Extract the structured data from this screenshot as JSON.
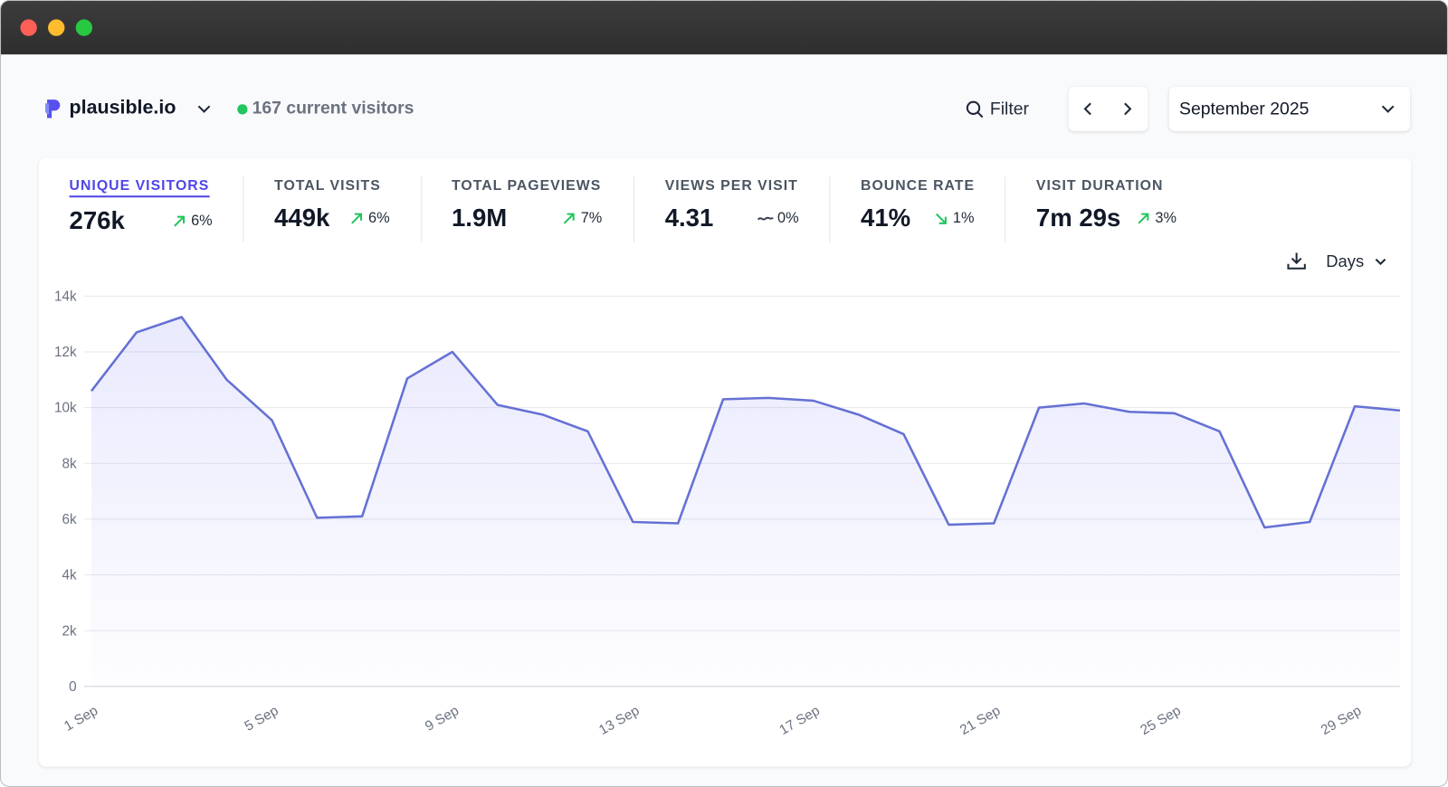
{
  "header": {
    "site": "plausible.io",
    "current_visitors": "167 current visitors",
    "filter": "Filter",
    "period": "September 2025"
  },
  "metrics": [
    {
      "label": "UNIQUE VISITORS",
      "value": "276k",
      "change": "6%",
      "trend": "up",
      "active": true
    },
    {
      "label": "TOTAL VISITS",
      "value": "449k",
      "change": "6%",
      "trend": "up"
    },
    {
      "label": "TOTAL PAGEVIEWS",
      "value": "1.9M",
      "change": "7%",
      "trend": "up"
    },
    {
      "label": "VIEWS PER VISIT",
      "value": "4.31",
      "change": "0%",
      "trend": "flat"
    },
    {
      "label": "BOUNCE RATE",
      "value": "41%",
      "change": "1%",
      "trend": "down"
    },
    {
      "label": "VISIT DURATION",
      "value": "7m 29s",
      "change": "3%",
      "trend": "up"
    }
  ],
  "interval": "Days",
  "chart_data": {
    "type": "area",
    "categories": [
      "1 Sep",
      null,
      null,
      null,
      "5 Sep",
      null,
      null,
      null,
      "9 Sep",
      null,
      null,
      null,
      "13 Sep",
      null,
      null,
      null,
      "17 Sep",
      null,
      null,
      null,
      "21 Sep",
      null,
      null,
      null,
      "25 Sep",
      null,
      null,
      null,
      "29 Sep",
      null
    ],
    "values": [
      10600,
      12700,
      13250,
      11000,
      9550,
      6050,
      6100,
      11050,
      12000,
      10100,
      9750,
      9150,
      5900,
      5850,
      10300,
      10350,
      10250,
      9750,
      9050,
      5800,
      5850,
      10000,
      10150,
      9850,
      9800,
      9150,
      5700,
      5900,
      10050,
      9900
    ],
    "color": "#6571d4",
    "ylim": [
      0,
      14000
    ],
    "yticks": [
      0,
      {
        "value": 2000,
        "label": "2k"
      },
      {
        "value": 4000,
        "label": "4k"
      },
      {
        "value": 6000,
        "label": "6k"
      },
      {
        "value": 8000,
        "label": "8k"
      },
      {
        "value": 10000,
        "label": "10k"
      },
      {
        "value": 12000,
        "label": "12k"
      },
      {
        "value": 14000,
        "label": "14k"
      }
    ],
    "grid": true
  }
}
